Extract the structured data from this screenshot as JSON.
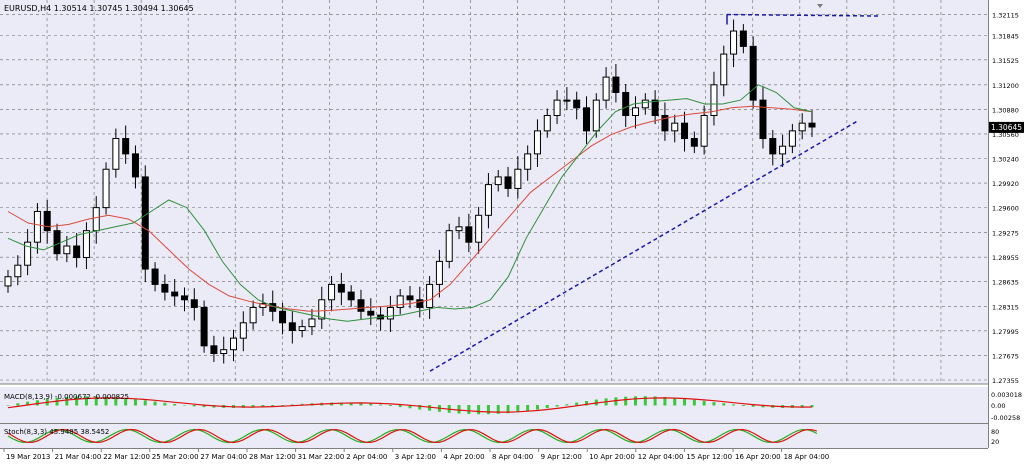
{
  "symbol_label": "EURUSD,H4  1.30514 1.30745 1.30494 1.30645",
  "current_price": "1.30645",
  "price_ticks": [
    "1.32115",
    "1.31845",
    "1.31525",
    "1.31200",
    "1.30880",
    "1.30560",
    "1.30240",
    "1.29920",
    "1.29600",
    "1.29275",
    "1.28955",
    "1.28635",
    "1.28315",
    "1.27995",
    "1.27675",
    "1.27355"
  ],
  "macd": {
    "label": "MACD(8,13,9) -0.000672 -0.000825",
    "ticks": [
      "0.003018",
      "0.00",
      "-0.00258"
    ]
  },
  "stoch": {
    "label": "Stoch(8,3,3) 45.9485 38.5452",
    "ticks": [
      "80",
      "20"
    ]
  },
  "time_labels": [
    "19 Mar 2013",
    "21 Mar 04:00",
    "22 Mar 12:00",
    "25 Mar 20:00",
    "27 Mar 04:00",
    "28 Mar 12:00",
    "31 Mar 22:00",
    "2 Apr 04:00",
    "3 Apr 12:00",
    "4 Apr 20:00",
    "8 Apr 04:00",
    "9 Apr 12:00",
    "10 Apr 20:00",
    "12 Apr 04:00",
    "15 Apr 12:00",
    "16 Apr 20:00",
    "18 Apr 04:00"
  ],
  "colors": {
    "background": "#ebebf7",
    "grid": "#6a6a6a",
    "candle": "#000000",
    "ma_fast": "#2f8f3a",
    "ma_slow": "#d94a3a",
    "trendline": "#1a1aa6",
    "macd_hist": "#38c838",
    "macd_signal": "#e01010",
    "stoch_main": "#20b020",
    "stoch_signal": "#e01010",
    "price_box": "#000000"
  },
  "chart_data": {
    "type": "candlestick",
    "ylim": [
      1.27355,
      1.322
    ],
    "current": 1.30645,
    "closes": [
      1.287,
      1.2885,
      1.2915,
      1.2955,
      1.293,
      1.29,
      1.291,
      1.2895,
      1.293,
      1.296,
      1.301,
      1.305,
      1.303,
      1.3,
      1.288,
      1.286,
      1.285,
      1.2845,
      1.284,
      1.283,
      1.278,
      1.277,
      1.2775,
      1.279,
      1.281,
      1.283,
      1.2835,
      1.2825,
      1.281,
      1.28,
      1.2805,
      1.2815,
      1.284,
      1.286,
      1.285,
      1.284,
      1.2825,
      1.282,
      1.2815,
      1.283,
      1.2845,
      1.284,
      1.283,
      1.286,
      1.289,
      1.293,
      1.2935,
      1.2915,
      1.295,
      1.299,
      1.3,
      1.2985,
      1.301,
      1.303,
      1.306,
      1.308,
      1.31,
      1.31,
      1.309,
      1.306,
      1.31,
      1.313,
      1.311,
      1.308,
      1.309,
      1.31,
      1.308,
      1.306,
      1.307,
      1.305,
      1.304,
      1.308,
      1.312,
      1.316,
      1.319,
      1.317,
      1.31,
      1.305,
      1.303,
      1.304,
      1.306,
      1.307,
      1.3065
    ],
    "ma_fast": [
      1.292,
      1.291,
      1.2905,
      1.2915,
      1.2925,
      1.293,
      1.2935,
      1.294,
      1.2955,
      1.297,
      1.296,
      1.293,
      1.289,
      1.286,
      1.284,
      1.283,
      1.2825,
      1.282,
      1.2815,
      1.2812,
      1.2815,
      1.2818,
      1.282,
      1.2825,
      1.283,
      1.2828,
      1.283,
      1.284,
      1.287,
      1.292,
      1.296,
      1.3,
      1.303,
      1.306,
      1.3085,
      1.3095,
      1.3098,
      1.31,
      1.3102,
      1.3095,
      1.3095,
      1.31,
      1.312,
      1.311,
      1.309,
      1.3085
    ],
    "ma_slow": [
      1.2955,
      1.294,
      1.2935,
      1.2938,
      1.2945,
      1.295,
      1.2945,
      1.293,
      1.2905,
      1.288,
      1.286,
      1.2845,
      1.2838,
      1.2832,
      1.2828,
      1.2825,
      1.2826,
      1.2828,
      1.283,
      1.2832,
      1.2835,
      1.284,
      1.286,
      1.289,
      1.292,
      1.295,
      1.298,
      1.3,
      1.302,
      1.304,
      1.3055,
      1.3065,
      1.3072,
      1.3078,
      1.3082,
      1.3085,
      1.309,
      1.3092,
      1.309,
      1.3088,
      1.3085
    ],
    "trendline": {
      "from": [
        1.2747,
        0
      ],
      "to": [
        1.3068,
        1
      ]
    },
    "resistance": 1.32115
  }
}
